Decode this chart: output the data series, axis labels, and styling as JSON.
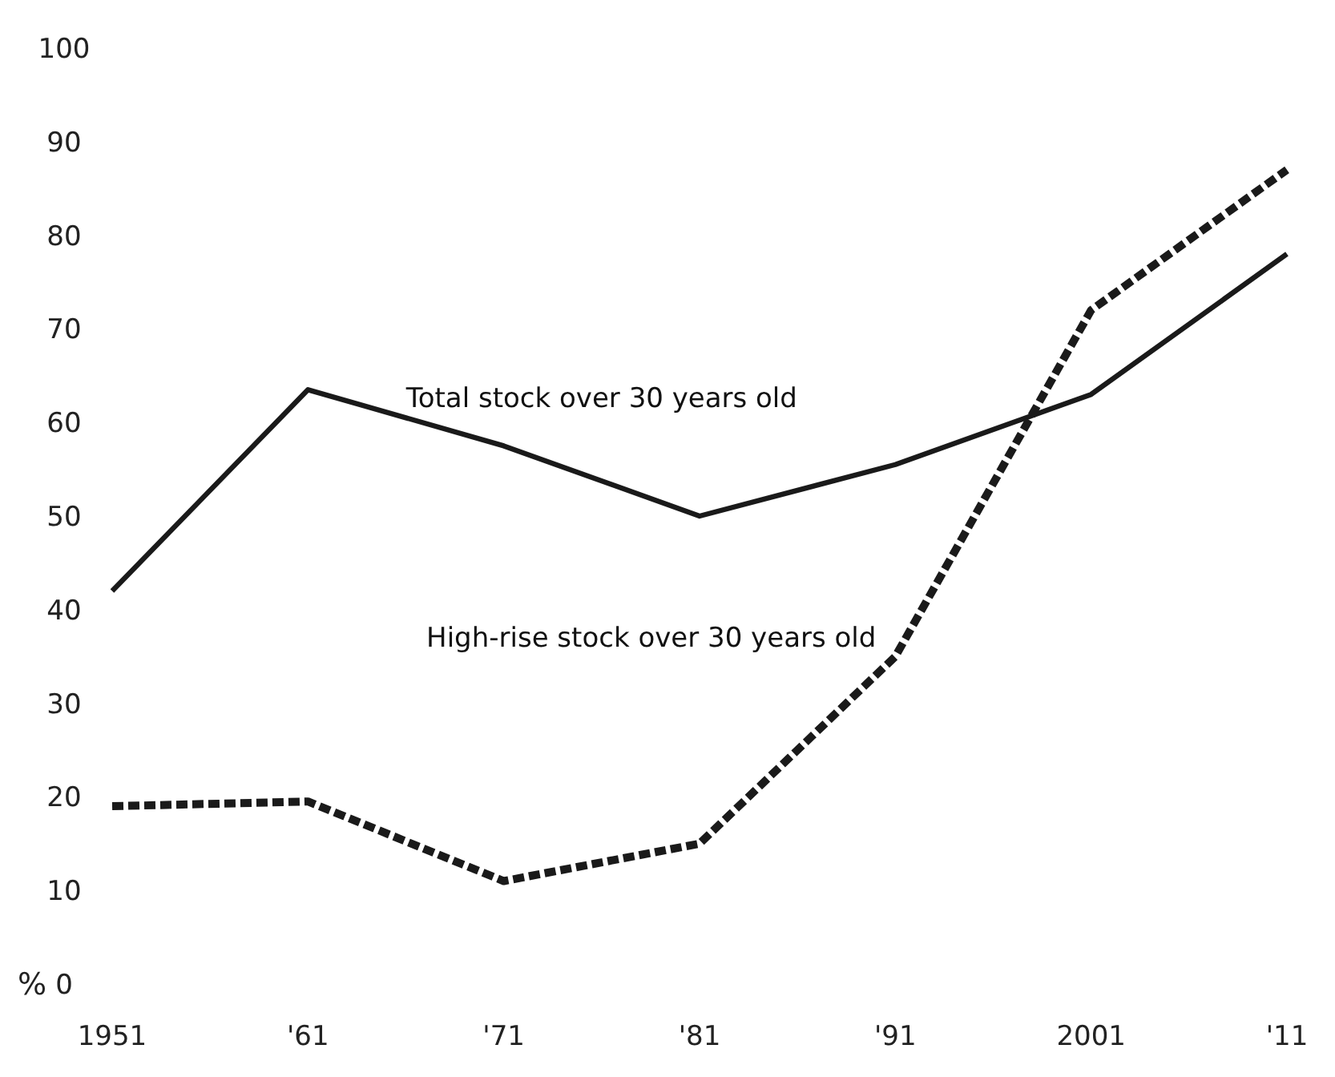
{
  "chart_data": {
    "type": "line",
    "ylabel": "%",
    "categories": [
      "1951",
      "'61",
      "'71",
      "'81",
      "'91",
      "2001",
      "'11"
    ],
    "series": [
      {
        "name": "Total stock over 30 years old",
        "color": "#1a1a1a",
        "line_style": "solid",
        "values": [
          42,
          63.5,
          57.5,
          50,
          55.5,
          63,
          78
        ]
      },
      {
        "name": "High-rise stock over 30 years old",
        "color": "#1a1a1a",
        "line_style": "dashed",
        "values": [
          19,
          19.5,
          11,
          15,
          35,
          72,
          87
        ]
      }
    ],
    "ylim": [
      0,
      100
    ],
    "yticks": [
      0,
      10,
      20,
      30,
      40,
      50,
      60,
      70,
      80,
      90,
      100
    ],
    "grid": false,
    "legend": false,
    "marker": "none"
  }
}
